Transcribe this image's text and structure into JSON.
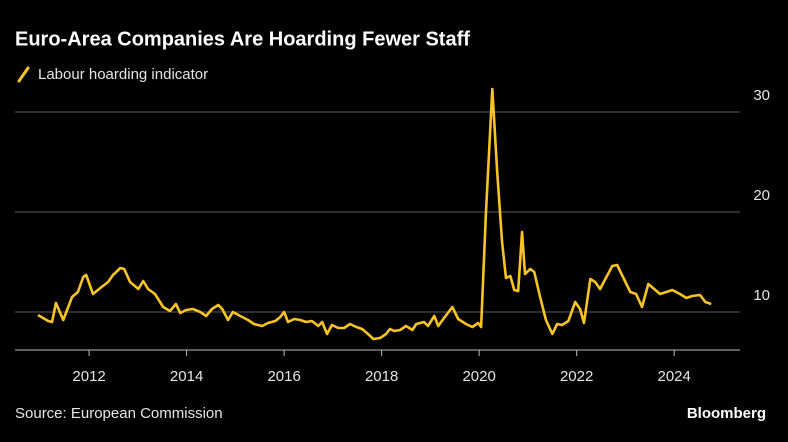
{
  "chart_data": {
    "type": "line",
    "title": "Euro-Area Companies Are Hoarding Fewer Staff",
    "source": "Source: European Commission",
    "brand": "Bloomberg",
    "series": [
      {
        "name": "Labour hoarding indicator",
        "color": "#f7c325",
        "x": [
          2010.95,
          2011.16,
          2011.24,
          2011.32,
          2011.47,
          2011.65,
          2011.77,
          2011.88,
          2011.94,
          2012.08,
          2012.23,
          2012.39,
          2012.49,
          2012.64,
          2012.72,
          2012.84,
          2013.01,
          2013.11,
          2013.21,
          2013.35,
          2013.52,
          2013.66,
          2013.78,
          2013.87,
          2013.99,
          2014.13,
          2014.28,
          2014.4,
          2014.52,
          2014.65,
          2014.73,
          2014.85,
          2014.95,
          2015.1,
          2015.26,
          2015.38,
          2015.55,
          2015.67,
          2015.82,
          2015.92,
          2016.0,
          2016.08,
          2016.21,
          2016.33,
          2016.45,
          2016.57,
          2016.7,
          2016.78,
          2016.88,
          2016.98,
          2017.11,
          2017.23,
          2017.35,
          2017.48,
          2017.6,
          2017.72,
          2017.83,
          2017.97,
          2018.09,
          2018.17,
          2018.26,
          2018.38,
          2018.5,
          2018.63,
          2018.71,
          2018.87,
          2018.95,
          2019.08,
          2019.16,
          2019.28,
          2019.45,
          2019.57,
          2019.73,
          2019.86,
          2019.98,
          2020.04,
          2020.14,
          2020.27,
          2020.37,
          2020.47,
          2020.55,
          2020.64,
          2020.72,
          2020.8,
          2020.88,
          2020.94,
          2021.05,
          2021.13,
          2021.25,
          2021.37,
          2021.5,
          2021.6,
          2021.7,
          2021.83,
          2021.97,
          2022.07,
          2022.15,
          2022.28,
          2022.38,
          2022.48,
          2022.61,
          2022.73,
          2022.83,
          2022.97,
          2023.1,
          2023.22,
          2023.34,
          2023.47,
          2023.59,
          2023.71,
          2023.84,
          2023.96,
          2024.12,
          2024.25,
          2024.37,
          2024.53,
          2024.64,
          2024.76
        ],
        "values": [
          9.7,
          9.1,
          9.0,
          10.9,
          9.2,
          11.5,
          12.0,
          13.5,
          13.7,
          11.8,
          12.4,
          13.0,
          13.7,
          14.4,
          14.3,
          13.0,
          12.3,
          13.1,
          12.3,
          11.8,
          10.5,
          10.1,
          10.8,
          9.9,
          10.2,
          10.3,
          10.0,
          9.6,
          10.3,
          10.7,
          10.3,
          9.2,
          10.0,
          9.6,
          9.2,
          8.8,
          8.6,
          8.9,
          9.1,
          9.5,
          10.0,
          9.0,
          9.3,
          9.2,
          9.0,
          9.1,
          8.6,
          9.0,
          7.8,
          8.7,
          8.4,
          8.4,
          8.8,
          8.5,
          8.3,
          7.8,
          7.3,
          7.4,
          7.8,
          8.3,
          8.1,
          8.2,
          8.6,
          8.2,
          8.8,
          9.0,
          8.6,
          9.6,
          8.6,
          9.4,
          10.5,
          9.3,
          8.8,
          8.5,
          8.9,
          8.5,
          20.0,
          32.3,
          24.0,
          17.0,
          13.4,
          13.6,
          12.2,
          12.1,
          18.0,
          13.8,
          14.3,
          14.0,
          11.5,
          9.2,
          7.8,
          8.8,
          8.7,
          9.1,
          11.0,
          10.3,
          8.9,
          13.3,
          13.0,
          12.3,
          13.5,
          14.6,
          14.7,
          13.3,
          12.0,
          11.8,
          10.5,
          12.8,
          12.3,
          11.8,
          12.0,
          12.2,
          11.8,
          11.4,
          11.6,
          11.7,
          11.0,
          10.8
        ]
      }
    ],
    "xlim": [
      2010.48,
      2025.35
    ],
    "xticks": [
      2012,
      2014,
      2016,
      2018,
      2020,
      2022,
      2024
    ],
    "ylim": [
      6.2,
      32.5
    ],
    "yticks": [
      10,
      20,
      30
    ],
    "grid": true
  }
}
